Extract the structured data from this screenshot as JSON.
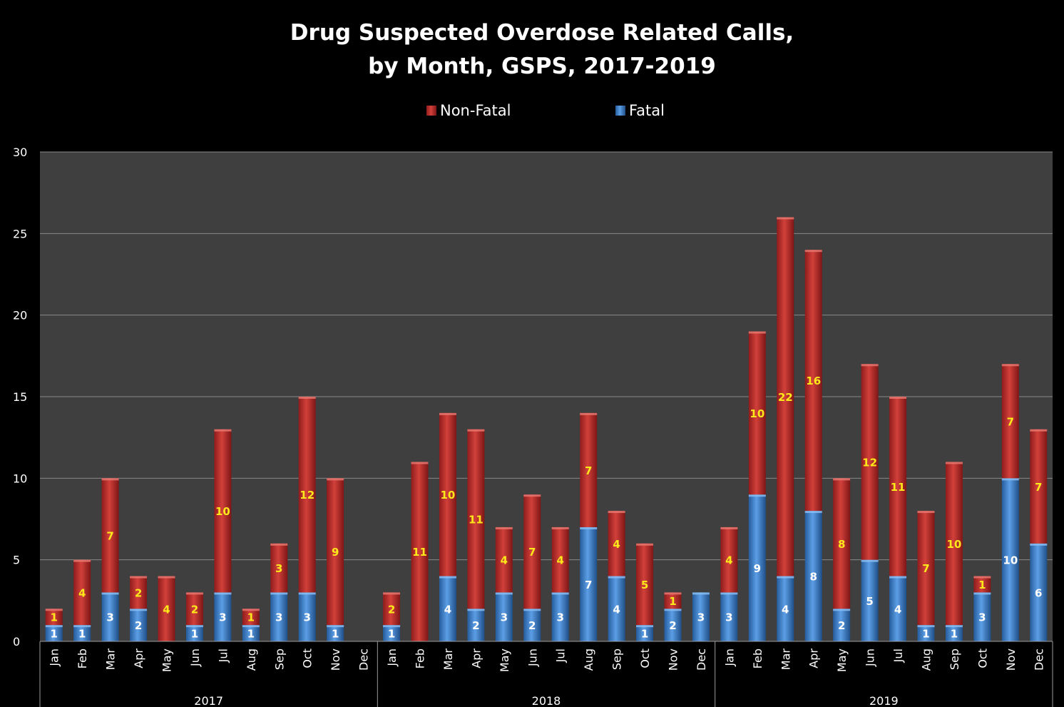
{
  "chart_data": {
    "type": "bar",
    "stacked": true,
    "title_line1": "Drug Suspected Overdose Related Calls,",
    "title_line2": "by Month, GSPS, 2017-2019",
    "legend_position": "top",
    "grid": true,
    "ylim": [
      0,
      30
    ],
    "yticks": [
      "0",
      "5",
      "10",
      "15",
      "20",
      "25",
      "30"
    ],
    "colors": {
      "non_fatal": "#c0302e",
      "fatal": "#3d7fcc",
      "plot_bg": "#3f3f3f",
      "page_bg": "#000000"
    },
    "groups": [
      {
        "label": "2017",
        "months": [
          "Jan",
          "Feb",
          "Mar",
          "Apr",
          "May",
          "Jun",
          "Jul",
          "Aug",
          "Sep",
          "Oct",
          "Nov",
          "Dec"
        ],
        "fatal": [
          1,
          1,
          3,
          2,
          0,
          1,
          3,
          1,
          3,
          3,
          1,
          0
        ],
        "non_fatal": [
          1,
          4,
          7,
          2,
          4,
          2,
          10,
          1,
          3,
          12,
          9,
          0
        ]
      },
      {
        "label": "2018",
        "months": [
          "Jan",
          "Feb",
          "Mar",
          "Apr",
          "May",
          "Jun",
          "Jul",
          "Aug",
          "Sep",
          "Oct",
          "Nov",
          "Dec"
        ],
        "fatal": [
          1,
          0,
          4,
          2,
          3,
          2,
          3,
          7,
          4,
          1,
          2,
          3
        ],
        "non_fatal": [
          2,
          11,
          10,
          11,
          4,
          7,
          4,
          7,
          4,
          5,
          1,
          0
        ]
      },
      {
        "label": "2019",
        "months": [
          "Jan",
          "Feb",
          "Mar",
          "Apr",
          "May",
          "Jun",
          "Jul",
          "Aug",
          "Sep",
          "Oct",
          "Nov",
          "Dec"
        ],
        "fatal": [
          3,
          9,
          4,
          8,
          2,
          5,
          4,
          1,
          1,
          3,
          10,
          6
        ],
        "non_fatal": [
          4,
          10,
          22,
          16,
          8,
          12,
          11,
          7,
          10,
          1,
          7,
          7
        ]
      }
    ],
    "series": [
      {
        "name": "Non-Fatal",
        "key": "non_fatal"
      },
      {
        "name": "Fatal",
        "key": "fatal"
      }
    ]
  }
}
